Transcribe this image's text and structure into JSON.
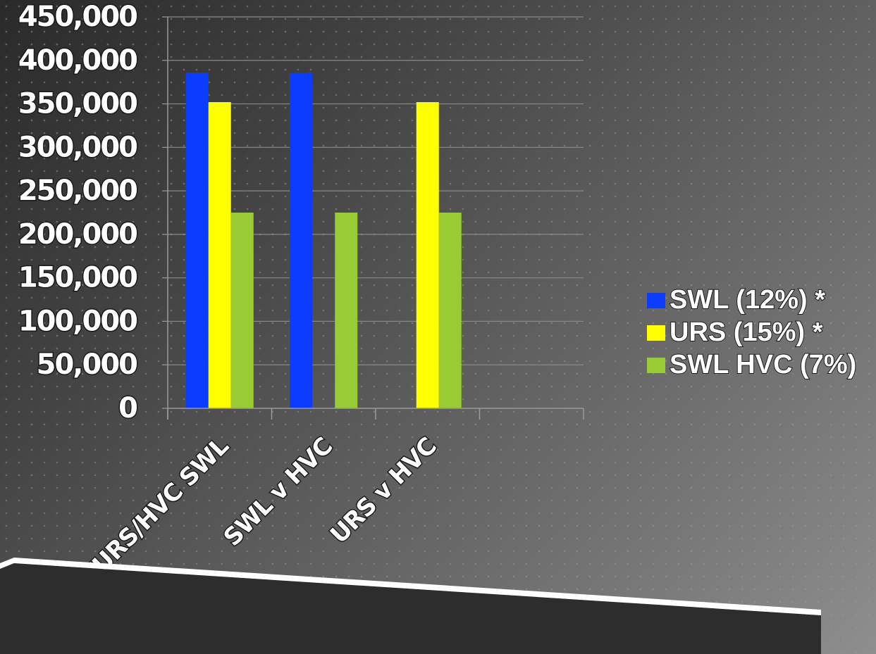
{
  "chart_data": {
    "type": "bar",
    "title": "",
    "xlabel": "",
    "ylabel": "",
    "categories": [
      "SWL/URS/HVC SWL",
      "SWL v HVC",
      "URS v HVC",
      ""
    ],
    "series": [
      {
        "name": "SWL (12%) *",
        "color": "#0a3dff",
        "values": [
          386000,
          386000,
          null,
          null
        ]
      },
      {
        "name": "URS (15%) *",
        "color": "#ffff00",
        "values": [
          352000,
          null,
          352000,
          null
        ]
      },
      {
        "name": "SWL HVC (7%)",
        "color": "#99cc33",
        "values": [
          225000,
          225000,
          225000,
          null
        ]
      }
    ],
    "ylim": [
      0,
      450000
    ],
    "yticks": [
      "0",
      "50,000",
      "100,000",
      "150,000",
      "200,000",
      "250,000",
      "300,000",
      "350,000",
      "400,000",
      "450,000"
    ],
    "grid": true,
    "legend_position": "right"
  }
}
